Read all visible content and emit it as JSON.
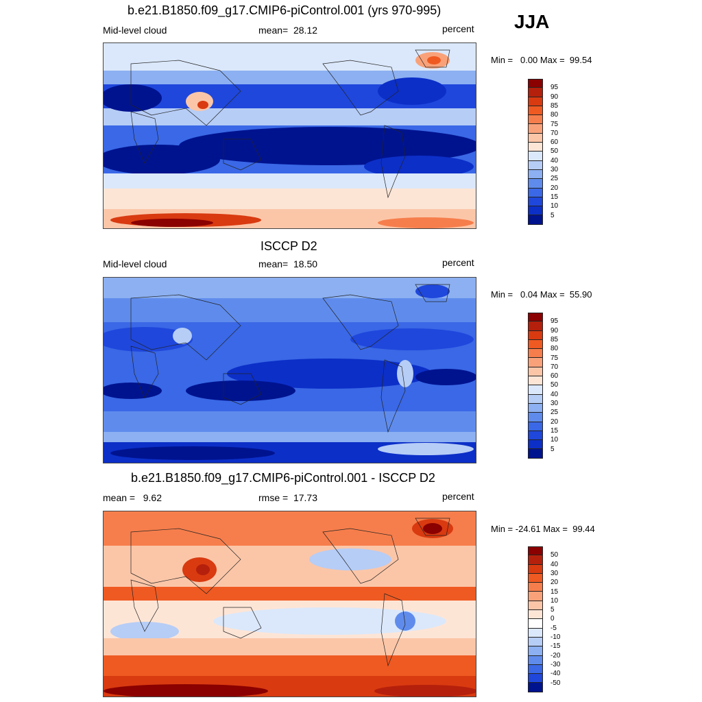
{
  "season": "JJA",
  "panels": [
    {
      "title": "b.e21.B1850.f09_g17.CMIP6-piControl.001 (yrs 970-995)",
      "left_label": "Mid-level cloud",
      "center_label": "mean=  28.12",
      "units": "percent",
      "minmax": "Min =   0.00 Max =  99.54",
      "colorbar": {
        "labels": [
          "95",
          "90",
          "85",
          "80",
          "75",
          "70",
          "60",
          "50",
          "40",
          "30",
          "25",
          "20",
          "15",
          "10",
          "5"
        ],
        "colors": [
          "#8b0000",
          "#b5200c",
          "#d93a10",
          "#ef5a22",
          "#f67e4c",
          "#f9a27a",
          "#fbc6a8",
          "#fde5d6",
          "#dbe8fb",
          "#b6cdf6",
          "#8cb0f1",
          "#5f8cec",
          "#3a68e6",
          "#1f47dc",
          "#0c2fc8",
          "#00138f"
        ]
      },
      "field_type": "model"
    },
    {
      "title": "ISCCP D2",
      "left_label": "Mid-level cloud",
      "center_label": "mean=  18.50",
      "units": "percent",
      "minmax": "Min =   0.04 Max =  55.90",
      "colorbar": {
        "labels": [
          "95",
          "90",
          "85",
          "80",
          "75",
          "70",
          "60",
          "50",
          "40",
          "30",
          "25",
          "20",
          "15",
          "10",
          "5"
        ],
        "colors": [
          "#8b0000",
          "#b5200c",
          "#d93a10",
          "#ef5a22",
          "#f67e4c",
          "#f9a27a",
          "#fbc6a8",
          "#fde5d6",
          "#dbe8fb",
          "#b6cdf6",
          "#8cb0f1",
          "#5f8cec",
          "#3a68e6",
          "#1f47dc",
          "#0c2fc8",
          "#00138f"
        ]
      },
      "field_type": "obs"
    },
    {
      "title": "b.e21.B1850.f09_g17.CMIP6-piControl.001 - ISCCP D2",
      "left_label": "mean =   9.62",
      "center_label": "rmse =  17.73",
      "units": "percent",
      "minmax": "Min = -24.61 Max =  99.44",
      "colorbar": {
        "labels": [
          "50",
          "40",
          "30",
          "20",
          "15",
          "10",
          "5",
          "0",
          "-5",
          "-10",
          "-15",
          "-20",
          "-30",
          "-40",
          "-50"
        ],
        "colors": [
          "#8b0000",
          "#b5200c",
          "#d93a10",
          "#ef5a22",
          "#f67e4c",
          "#f9a27a",
          "#fbc6a8",
          "#fde5d6",
          "#ffffff",
          "#dbe8fb",
          "#b6cdf6",
          "#8cb0f1",
          "#5f8cec",
          "#3a68e6",
          "#1f47dc",
          "#00138f"
        ]
      },
      "field_type": "diff"
    }
  ]
}
